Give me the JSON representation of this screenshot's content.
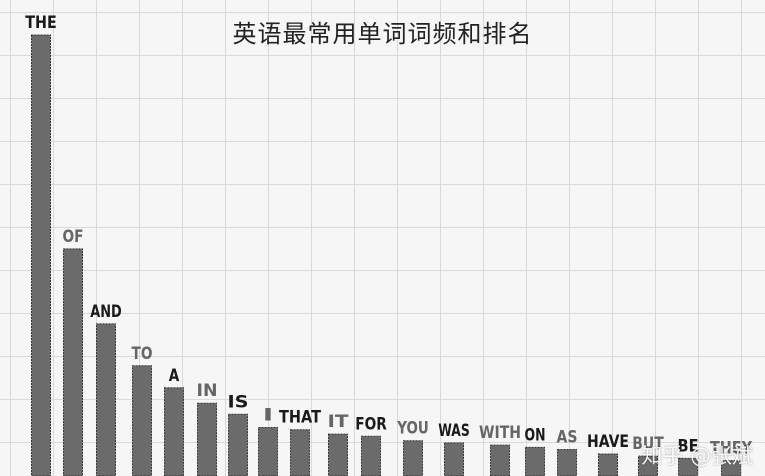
{
  "chart_data": {
    "type": "bar",
    "title": "英语最常用单词词频和排名",
    "xlabel": "",
    "ylabel": "",
    "categories": [
      "THE",
      "OF",
      "AND",
      "TO",
      "A",
      "IN",
      "IS",
      "I",
      "THAT",
      "IT",
      "FOR",
      "YOU",
      "WAS",
      "WITH",
      "ON",
      "AS",
      "HAVE",
      "BUT",
      "BE",
      "THEY"
    ],
    "values": [
      100,
      51.5,
      34.5,
      25,
      20,
      16.5,
      14,
      11,
      10.5,
      9.5,
      9,
      8,
      7.5,
      7,
      6.5,
      6,
      5,
      4.5,
      4,
      3.5
    ],
    "ylim": [
      0,
      100
    ],
    "grid": true,
    "label_colors": [
      "#1a1a1a",
      "#666666",
      "#1a1a1a",
      "#666666",
      "#1a1a1a",
      "#666666",
      "#1a1a1a",
      "#666666",
      "#1a1a1a",
      "#666666",
      "#1a1a1a",
      "#666666",
      "#1a1a1a",
      "#666666",
      "#1a1a1a",
      "#666666",
      "#1a1a1a",
      "#666666",
      "#1a1a1a",
      "#666666"
    ],
    "bar_color": "#6b6b6b"
  },
  "watermark": "知乎 @张斌"
}
